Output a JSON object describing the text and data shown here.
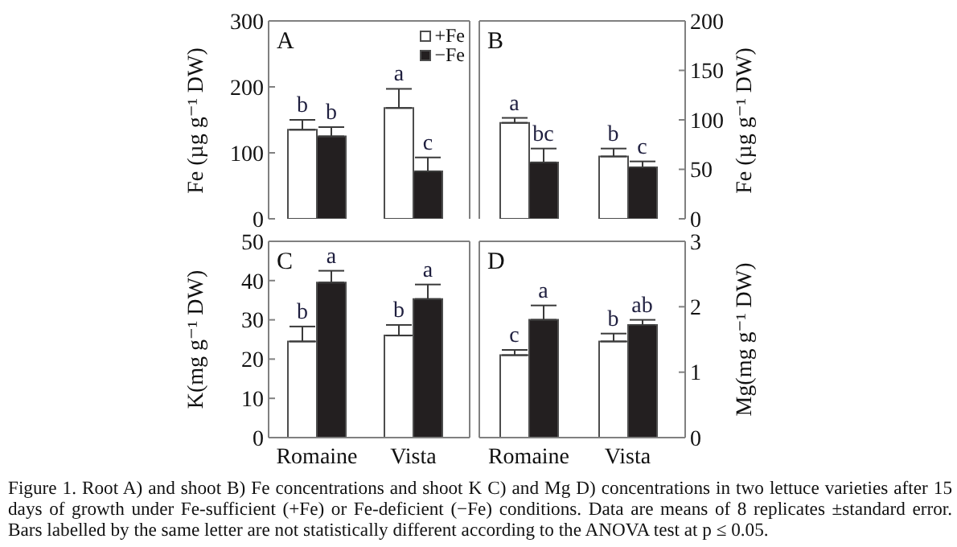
{
  "chart_data": [
    {
      "type": "bar",
      "title": "A",
      "categories": [
        null,
        null
      ],
      "ylabel": "Fe (µg g⁻¹ DW)",
      "ylim": [
        0,
        300
      ],
      "yticks": [
        0,
        100,
        200,
        300
      ],
      "legend": "top right",
      "series": [
        {
          "name": "+Fe",
          "color": "#ffffff",
          "values": [
            135,
            168
          ],
          "errors": [
            [
              135,
              150
            ],
            [
              168,
              197
            ]
          ],
          "value_labels": [
            "b",
            "a"
          ]
        },
        {
          "name": "−Fe",
          "color": "#231f20",
          "values": [
            125,
            72
          ],
          "errors": [
            [
              125,
              139
            ],
            [
              72,
              93
            ]
          ],
          "value_labels": [
            "b",
            "c"
          ]
        }
      ]
    },
    {
      "type": "bar",
      "title": "B",
      "categories": [
        null,
        null
      ],
      "ylabel": "Fe (µg g⁻¹ DW)",
      "ylim": [
        0,
        200
      ],
      "yticks": [
        0,
        50,
        100,
        150,
        200
      ],
      "series": [
        {
          "color": "#ffffff",
          "values": [
            97,
            63
          ],
          "errors": [
            [
              97,
              102
            ],
            [
              63,
              71
            ]
          ],
          "value_labels": [
            "a",
            "b"
          ]
        },
        {
          "color": "#231f20",
          "values": [
            57,
            52
          ],
          "errors": [
            [
              57,
              71
            ],
            [
              52,
              58
            ]
          ],
          "value_labels": [
            "bc",
            "c"
          ]
        }
      ]
    },
    {
      "type": "bar",
      "title": "C",
      "categories": [
        "Romaine",
        "Vista"
      ],
      "ylabel": "K(mg g⁻¹ DW)",
      "ylim": [
        0,
        50
      ],
      "yticks": [
        0,
        10,
        20,
        30,
        40,
        50
      ],
      "series": [
        {
          "color": "#ffffff",
          "values": [
            24.5,
            26
          ],
          "errors": [
            [
              24.5,
              28.3
            ],
            [
              26,
              28.7
            ]
          ],
          "value_labels": [
            "b",
            "b"
          ]
        },
        {
          "color": "#231f20",
          "values": [
            39.5,
            35.3
          ],
          "errors": [
            [
              39.5,
              42.5
            ],
            [
              35.3,
              39
            ]
          ],
          "value_labels": [
            "a",
            "a"
          ]
        }
      ]
    },
    {
      "type": "bar",
      "title": "D",
      "categories": [
        "Romaine",
        "Vista"
      ],
      "ylabel": "Mg(mg g⁻¹ DW)",
      "ylim": [
        0,
        3
      ],
      "yticks": [
        0,
        1,
        2,
        3
      ],
      "series": [
        {
          "color": "#ffffff",
          "values": [
            1.26,
            1.47
          ],
          "errors": [
            [
              1.26,
              1.34
            ],
            [
              1.47,
              1.59
            ]
          ],
          "value_labels": [
            "c",
            "b"
          ]
        },
        {
          "color": "#231f20",
          "values": [
            1.8,
            1.72
          ],
          "errors": [
            [
              1.8,
              2.02
            ],
            [
              1.72,
              1.8
            ]
          ],
          "value_labels": [
            "a",
            "ab"
          ]
        }
      ],
      "annotations": [
        "Figure 1. Root A) and shoot B) Fe concentrations and shoot K C) and Mg D) concentrations in two lettuce varieties after 15 days of growth under Fe-sufficient (+Fe) or Fe-deficient (−Fe) conditions. Data are means of 8 replicates ±standard error. Bars labelled by the same letter are not statistically different according to the ANOVA test at p ≤ 0.05."
      ]
    }
  ]
}
